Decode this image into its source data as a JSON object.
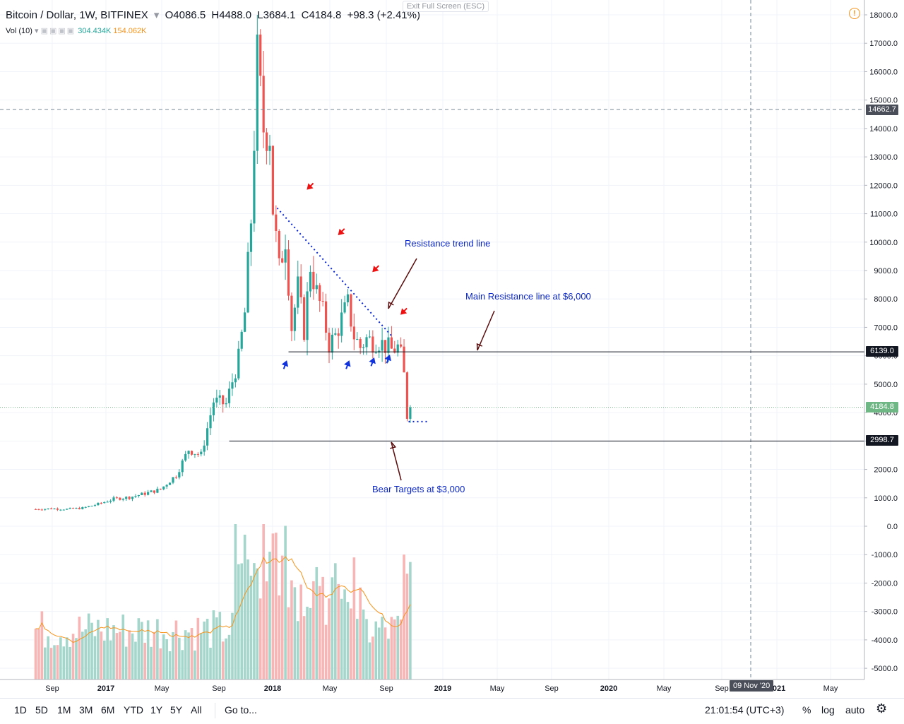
{
  "header": {
    "symbol": "Bitcoin / Dollar, 1W, BITFINEX",
    "open_label": "O",
    "open": "4086.5",
    "high_label": "H",
    "high": "4488.0",
    "low_label": "L",
    "low": "3684.1",
    "close_label": "C",
    "close": "4184.8",
    "change": "+98.3 (+2.41%)",
    "exit_fullscreen": "Exit Full Screen (ESC)"
  },
  "volume_header": {
    "label": "Vol (10)",
    "value1": "304.434K",
    "value2": "154.062K"
  },
  "annotations": {
    "resistance_trend": "Resistance trend line",
    "main_resistance": "Main Resistance line at $6,000",
    "bear_targets": "Bear Targets at $3,000"
  },
  "price_labels": {
    "crosshair": "14662.7",
    "resistance": "6139.0",
    "last": "4184.8",
    "target": "2998.7"
  },
  "bottom_bar": {
    "ranges": [
      "1D",
      "5D",
      "1M",
      "3M",
      "6M",
      "YTD",
      "1Y",
      "5Y",
      "All"
    ],
    "goto": "Go to...",
    "time": "21:01:54 (UTC+3)",
    "percent": "%",
    "log": "log",
    "auto": "auto"
  },
  "crosshair_date": "09 Nov '20",
  "colors": {
    "up": "#26a69a",
    "down": "#ef5350",
    "vol_up": "#a5d6cb",
    "vol_down": "#f7b6b5",
    "ma": "#f7931a",
    "annotation": "#0a26c6",
    "last_price": "#4caf50"
  },
  "chart_data": {
    "type": "candlestick",
    "timeframe": "1W",
    "y_axis": {
      "ticks": [
        "18000.0",
        "17000.0",
        "16000.0",
        "15000.0",
        "14000.0",
        "13000.0",
        "12000.0",
        "11000.0",
        "10000.0",
        "9000.0",
        "8000.0",
        "7000.0",
        "6000.0",
        "5000.0",
        "4000.0",
        "3000.0",
        "2000.0",
        "1000.0",
        "0.0",
        "-1000.0",
        "-2000.0",
        "-3000.0",
        "-4000.0",
        "-5000.0"
      ],
      "range": [
        -5300,
        18500
      ]
    },
    "x_axis": {
      "labels": [
        "Sep",
        "2017",
        "May",
        "Sep",
        "2018",
        "May",
        "Sep",
        "2019",
        "May",
        "Sep",
        "2020",
        "May",
        "Sep",
        "2021",
        "May"
      ]
    },
    "levels": [
      {
        "name": "main-resistance",
        "value": 6139.0
      },
      {
        "name": "bear-target",
        "value": 2998.7
      }
    ],
    "trend_line": {
      "from": {
        "week": 1,
        "price": 11200
      },
      "to": {
        "week": 39,
        "price": 6700
      }
    },
    "series": [
      {
        "name": "price",
        "weeks_from_2018_start": [
          -75,
          -70,
          -65,
          -60,
          -55,
          -50,
          -45,
          -40,
          -35,
          -30,
          -26,
          -22,
          -18,
          -14,
          -10,
          -8,
          -6,
          -4,
          -2,
          0,
          1,
          3,
          5,
          7,
          9,
          11,
          13,
          15,
          17,
          19,
          21,
          23,
          25,
          27,
          29,
          31,
          33,
          35,
          37,
          39,
          41,
          42,
          43,
          44,
          45
        ],
        "close": [
          600,
          620,
          600,
          640,
          780,
          960,
          1020,
          1150,
          1300,
          1800,
          2700,
          2500,
          4400,
          4300,
          5900,
          7500,
          10800,
          16500,
          14000,
          13800,
          11200,
          9000,
          10200,
          7000,
          8400,
          6900,
          9200,
          8200,
          7500,
          6400,
          6700,
          7300,
          7800,
          6700,
          6300,
          6600,
          6500,
          6500,
          6350,
          6200,
          6300,
          6000,
          5300,
          3900,
          4184.8
        ]
      }
    ]
  }
}
